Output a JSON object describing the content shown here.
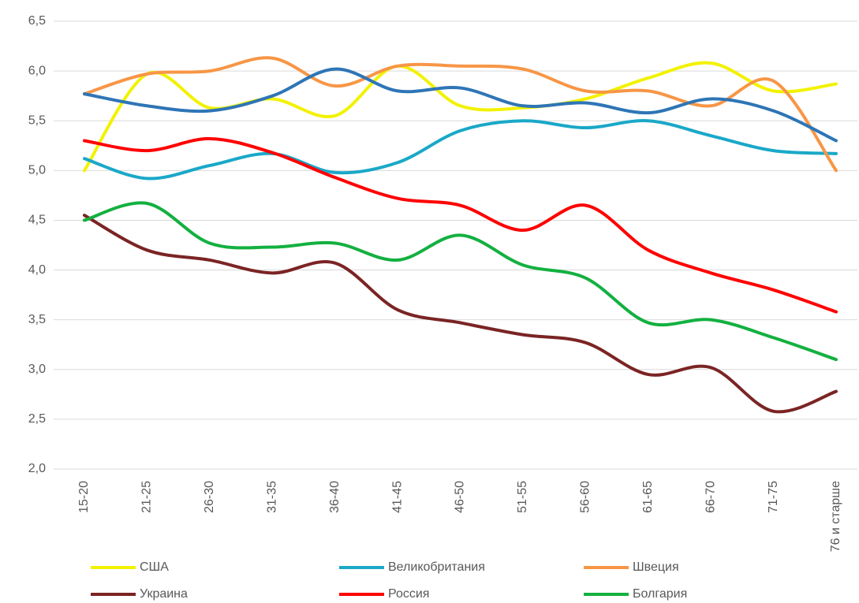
{
  "chart_data": {
    "type": "line",
    "categories": [
      "15-20",
      "21-25",
      "26-30",
      "31-35",
      "36-40",
      "41-45",
      "46-50",
      "51-55",
      "56-60",
      "61-65",
      "66-70",
      "71-75",
      "76 и старше"
    ],
    "series": [
      {
        "name": "США",
        "color": "#f2f200",
        "values": [
          5.0,
          5.97,
          5.63,
          5.72,
          5.55,
          6.05,
          5.65,
          5.63,
          5.72,
          5.93,
          6.08,
          5.8,
          5.87
        ]
      },
      {
        "name": "Великобритания",
        "color": "#1aa8c8",
        "values": [
          5.12,
          4.92,
          5.05,
          5.17,
          4.98,
          5.08,
          5.4,
          5.5,
          5.43,
          5.5,
          5.35,
          5.2,
          5.17
        ]
      },
      {
        "name": "Швеция",
        "color": "#f79646",
        "values": [
          5.77,
          5.97,
          6.0,
          6.13,
          5.85,
          6.05,
          6.05,
          6.02,
          5.8,
          5.8,
          5.65,
          5.9,
          5.0
        ]
      },
      {
        "color": "#2e75b6",
        "values": [
          5.77,
          5.65,
          5.6,
          5.75,
          6.02,
          5.8,
          5.83,
          5.65,
          5.68,
          5.58,
          5.72,
          5.6,
          5.3
        ]
      },
      {
        "name": "Украина",
        "color": "#7b2424",
        "values": [
          4.55,
          4.2,
          4.1,
          3.97,
          4.07,
          3.6,
          3.47,
          3.35,
          3.27,
          2.95,
          3.02,
          2.58,
          2.78
        ]
      },
      {
        "name": "Россия",
        "color": "#ff0000",
        "values": [
          5.3,
          5.2,
          5.32,
          5.18,
          4.93,
          4.72,
          4.65,
          4.4,
          4.65,
          4.2,
          3.97,
          3.8,
          3.58
        ]
      },
      {
        "name": "Болгария",
        "color": "#13b040",
        "values": [
          4.5,
          4.67,
          4.27,
          4.23,
          4.27,
          4.1,
          4.35,
          4.05,
          3.92,
          3.47,
          3.5,
          3.32,
          3.1
        ]
      }
    ],
    "ylim": [
      2.0,
      6.5
    ],
    "yticks": [
      {
        "value": 2.0,
        "label": "2,0"
      },
      {
        "value": 2.5,
        "label": "2,5"
      },
      {
        "value": 3.0,
        "label": "3,0"
      },
      {
        "value": 3.5,
        "label": "3,5"
      },
      {
        "value": 4.0,
        "label": "4,0"
      },
      {
        "value": 4.5,
        "label": "4,5"
      },
      {
        "value": 5.0,
        "label": "5,0"
      },
      {
        "value": 5.5,
        "label": "5,5"
      },
      {
        "value": 6.0,
        "label": "6,0"
      },
      {
        "value": 6.5,
        "label": "6,5"
      }
    ],
    "grid": true,
    "legend": "bottom"
  }
}
